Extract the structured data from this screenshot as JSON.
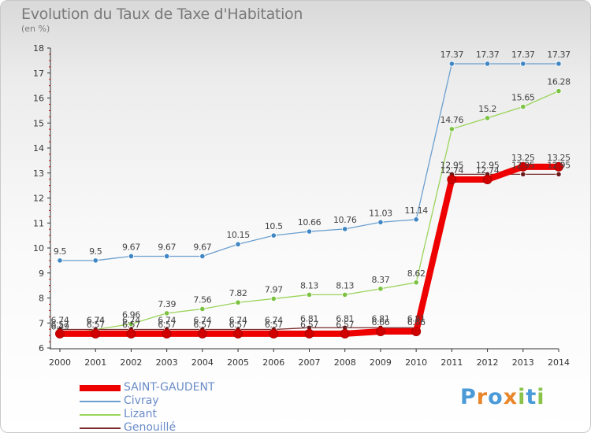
{
  "title": "Evolution du Taux de Taxe d'Habitation",
  "subtitle": "(en %)",
  "logo": {
    "text": "ProXiti",
    "letters": [
      "P",
      "r",
      "o",
      "x",
      "i",
      "t",
      "i"
    ],
    "colors": [
      "#4a9ad8",
      "#e9862c",
      "#4a9ad8",
      "#e9862c",
      "#8bc34a",
      "#4a9ad8",
      "#8bc34a"
    ]
  },
  "chart_data": {
    "type": "line",
    "title": "Evolution du Taux de Taxe d'Habitation",
    "ylabel": "(en %)",
    "xlabel": "",
    "x": [
      "2000",
      "2001",
      "2002",
      "2003",
      "2004",
      "2005",
      "2006",
      "2007",
      "2008",
      "2009",
      "2010",
      "2011",
      "2012",
      "2013",
      "2014"
    ],
    "ylim": [
      6,
      18
    ],
    "yticks": [
      "6",
      "7",
      "8",
      "9",
      "10",
      "11",
      "12",
      "13",
      "14",
      "15",
      "16",
      "17",
      "18"
    ],
    "grid": false,
    "legend_position": "bottom-left",
    "series": [
      {
        "name": "Civray",
        "color": "#6b9fcf",
        "marker": "#3f86c4",
        "width": 1.3,
        "values": [
          9.5,
          9.5,
          9.67,
          9.67,
          9.67,
          10.15,
          10.5,
          10.66,
          10.76,
          11.03,
          11.14,
          17.37,
          17.37,
          17.37,
          17.37
        ],
        "labels": [
          "9.5",
          "9.5",
          "9.67",
          "9.67",
          "9.67",
          "10.15",
          "10.5",
          "10.66",
          "10.76",
          "11.03",
          "11.14",
          "17.37",
          "17.37",
          "17.37",
          "17.37"
        ]
      },
      {
        "name": "Lizant",
        "color": "#9ad45a",
        "marker": "#7cc242",
        "width": 1.3,
        "values": [
          6.49,
          6.74,
          6.96,
          7.39,
          7.56,
          7.82,
          7.97,
          8.13,
          8.13,
          8.37,
          8.62,
          14.76,
          15.2,
          15.65,
          16.28
        ],
        "labels": [
          "6.49",
          "6.74",
          "6.96",
          "7.39",
          "7.56",
          "7.82",
          "7.97",
          "8.13",
          "8.13",
          "8.37",
          "8.62",
          "14.76",
          "15.2",
          "15.65",
          "16.28"
        ]
      },
      {
        "name": "Genouillé",
        "color": "#7a2a2a",
        "marker": "#6b1a1a",
        "width": 1.3,
        "values": [
          6.74,
          6.74,
          6.74,
          6.74,
          6.74,
          6.74,
          6.74,
          6.81,
          6.81,
          6.81,
          6.81,
          12.95,
          12.95,
          12.95,
          12.95
        ],
        "labels": [
          "6.74",
          "6.74",
          "6.74",
          "6.74",
          "6.74",
          "6.74",
          "6.74",
          "6.81",
          "6.81",
          "6.81",
          "6.81",
          "12.95",
          "12.95",
          "12.95",
          "12.95"
        ]
      },
      {
        "name": "SAINT-GAUDENT",
        "color": "#ee0000",
        "marker": "#d10000",
        "width": 8,
        "values": [
          6.57,
          6.57,
          6.57,
          6.57,
          6.57,
          6.57,
          6.57,
          6.57,
          6.57,
          6.66,
          6.66,
          12.74,
          12.74,
          13.25,
          13.25
        ],
        "labels": [
          "6.57",
          "6.57",
          "6.57",
          "6.57",
          "6.57",
          "6.57",
          "6.57",
          "6.57",
          "6.57",
          "6.66",
          "6.66",
          "12.74",
          "12.74",
          "13.25",
          "13.25"
        ]
      }
    ],
    "legend_order": [
      "SAINT-GAUDENT",
      "Civray",
      "Lizant",
      "Genouillé"
    ]
  }
}
